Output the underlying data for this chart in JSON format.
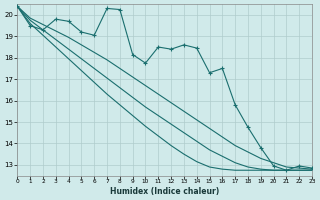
{
  "xlabel": "Humidex (Indice chaleur)",
  "background_color": "#d0eaea",
  "grid_color": "#b0cccc",
  "line_color": "#1a6e6e",
  "xlim": [
    0,
    23
  ],
  "ylim": [
    12.5,
    20.5
  ],
  "xticks": [
    0,
    1,
    2,
    3,
    4,
    5,
    6,
    7,
    8,
    9,
    10,
    11,
    12,
    13,
    14,
    15,
    16,
    17,
    18,
    19,
    20,
    21,
    22,
    23
  ],
  "yticks": [
    13,
    14,
    15,
    16,
    17,
    18,
    19,
    20
  ],
  "wavy": [
    20.4,
    19.5,
    19.3,
    19.8,
    19.7,
    19.2,
    19.05,
    20.3,
    20.25,
    18.15,
    17.75,
    18.5,
    18.4,
    18.6,
    18.45,
    17.3,
    17.5,
    15.8,
    14.75,
    13.8,
    12.95,
    12.75,
    12.95,
    12.85
  ],
  "smooth1": [
    20.4,
    19.85,
    19.55,
    19.25,
    18.95,
    18.6,
    18.25,
    17.9,
    17.5,
    17.1,
    16.7,
    16.3,
    15.9,
    15.5,
    15.1,
    14.7,
    14.3,
    13.9,
    13.6,
    13.3,
    13.1,
    12.9,
    12.85,
    12.8
  ],
  "smooth2": [
    20.4,
    19.75,
    19.3,
    18.85,
    18.4,
    17.95,
    17.5,
    17.05,
    16.6,
    16.15,
    15.7,
    15.3,
    14.9,
    14.5,
    14.1,
    13.7,
    13.4,
    13.1,
    12.9,
    12.8,
    12.75,
    12.75,
    12.75,
    12.75
  ],
  "smooth3": [
    20.4,
    19.6,
    19.05,
    18.5,
    17.95,
    17.4,
    16.85,
    16.3,
    15.8,
    15.3,
    14.8,
    14.35,
    13.9,
    13.5,
    13.15,
    12.9,
    12.8,
    12.75,
    12.75,
    12.75,
    12.75,
    12.75,
    12.75,
    12.75
  ]
}
